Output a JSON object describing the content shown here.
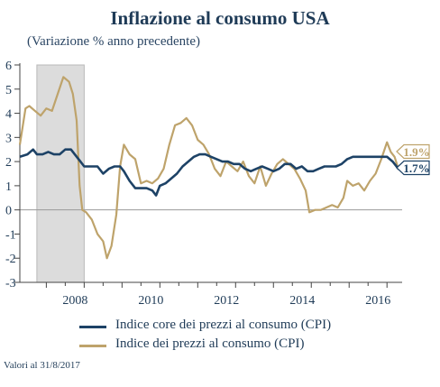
{
  "title": "Inflazione al consumo USA",
  "subtitle": "(Variazione % anno precedente)",
  "footnote": "Valori al 31/8/2017",
  "colors": {
    "core": "#1d4266",
    "cpi": "#bea36b",
    "recession": "#dcdcdc",
    "grid": "#9a9a9a"
  },
  "chart_data": {
    "type": "line",
    "ylim": [
      -3,
      6
    ],
    "yticks": [
      -3,
      -2,
      -1,
      0,
      1,
      2,
      3,
      4,
      5,
      6
    ],
    "xlim": [
      2007.3,
      2017.4
    ],
    "xticks": [
      {
        "value": 2008,
        "label": "2008"
      },
      {
        "value": 2010,
        "label": "2010"
      },
      {
        "value": 2012,
        "label": "2012"
      },
      {
        "value": 2014,
        "label": "2014"
      },
      {
        "value": 2016,
        "label": "2016"
      }
    ],
    "shaded_region": {
      "x": [
        2007.75,
        2009.0
      ]
    },
    "series": [
      {
        "name": "Indice core dei prezzi al consumo (CPI)",
        "key": "core",
        "end_label": "1.7%",
        "values": [
          [
            2007.3,
            2.2
          ],
          [
            2007.5,
            2.3
          ],
          [
            2007.65,
            2.5
          ],
          [
            2007.75,
            2.3
          ],
          [
            2007.9,
            2.3
          ],
          [
            2008.05,
            2.4
          ],
          [
            2008.2,
            2.3
          ],
          [
            2008.35,
            2.3
          ],
          [
            2008.5,
            2.5
          ],
          [
            2008.65,
            2.5
          ],
          [
            2008.75,
            2.3
          ],
          [
            2008.9,
            2.0
          ],
          [
            2009.0,
            1.8
          ],
          [
            2009.2,
            1.8
          ],
          [
            2009.35,
            1.8
          ],
          [
            2009.5,
            1.5
          ],
          [
            2009.65,
            1.7
          ],
          [
            2009.8,
            1.8
          ],
          [
            2009.95,
            1.8
          ],
          [
            2010.05,
            1.6
          ],
          [
            2010.2,
            1.2
          ],
          [
            2010.35,
            0.9
          ],
          [
            2010.5,
            0.9
          ],
          [
            2010.65,
            0.9
          ],
          [
            2010.8,
            0.8
          ],
          [
            2010.9,
            0.6
          ],
          [
            2011.0,
            1.0
          ],
          [
            2011.15,
            1.1
          ],
          [
            2011.3,
            1.3
          ],
          [
            2011.45,
            1.5
          ],
          [
            2011.6,
            1.8
          ],
          [
            2011.75,
            2.0
          ],
          [
            2011.9,
            2.2
          ],
          [
            2012.05,
            2.3
          ],
          [
            2012.2,
            2.3
          ],
          [
            2012.35,
            2.2
          ],
          [
            2012.5,
            2.1
          ],
          [
            2012.65,
            2.0
          ],
          [
            2012.8,
            2.0
          ],
          [
            2012.95,
            1.9
          ],
          [
            2013.1,
            1.9
          ],
          [
            2013.25,
            1.7
          ],
          [
            2013.4,
            1.6
          ],
          [
            2013.55,
            1.7
          ],
          [
            2013.7,
            1.8
          ],
          [
            2013.85,
            1.7
          ],
          [
            2014.0,
            1.6
          ],
          [
            2014.15,
            1.7
          ],
          [
            2014.3,
            1.9
          ],
          [
            2014.45,
            1.9
          ],
          [
            2014.6,
            1.7
          ],
          [
            2014.75,
            1.8
          ],
          [
            2014.9,
            1.6
          ],
          [
            2015.05,
            1.6
          ],
          [
            2015.2,
            1.7
          ],
          [
            2015.35,
            1.8
          ],
          [
            2015.5,
            1.8
          ],
          [
            2015.65,
            1.8
          ],
          [
            2015.8,
            1.9
          ],
          [
            2015.95,
            2.1
          ],
          [
            2016.1,
            2.2
          ],
          [
            2016.25,
            2.2
          ],
          [
            2016.4,
            2.2
          ],
          [
            2016.55,
            2.2
          ],
          [
            2016.7,
            2.2
          ],
          [
            2016.85,
            2.2
          ],
          [
            2017.0,
            2.2
          ],
          [
            2017.15,
            2.0
          ],
          [
            2017.3,
            1.7
          ],
          [
            2017.4,
            1.7
          ]
        ]
      },
      {
        "name": "Indice dei prezzi al consumo (CPI)",
        "key": "cpi",
        "end_label": "1.9%",
        "values": [
          [
            2007.3,
            2.7
          ],
          [
            2007.45,
            4.2
          ],
          [
            2007.55,
            4.3
          ],
          [
            2007.7,
            4.1
          ],
          [
            2007.85,
            3.9
          ],
          [
            2008.0,
            4.2
          ],
          [
            2008.15,
            4.1
          ],
          [
            2008.3,
            4.8
          ],
          [
            2008.45,
            5.5
          ],
          [
            2008.6,
            5.3
          ],
          [
            2008.7,
            4.8
          ],
          [
            2008.8,
            3.7
          ],
          [
            2008.88,
            1.0
          ],
          [
            2008.95,
            0.0
          ],
          [
            2009.05,
            -0.1
          ],
          [
            2009.2,
            -0.4
          ],
          [
            2009.35,
            -1.0
          ],
          [
            2009.5,
            -1.3
          ],
          [
            2009.6,
            -2.0
          ],
          [
            2009.72,
            -1.5
          ],
          [
            2009.85,
            -0.2
          ],
          [
            2009.95,
            1.8
          ],
          [
            2010.05,
            2.7
          ],
          [
            2010.2,
            2.3
          ],
          [
            2010.35,
            2.1
          ],
          [
            2010.5,
            1.1
          ],
          [
            2010.65,
            1.2
          ],
          [
            2010.8,
            1.1
          ],
          [
            2010.95,
            1.3
          ],
          [
            2011.1,
            1.7
          ],
          [
            2011.25,
            2.7
          ],
          [
            2011.4,
            3.5
          ],
          [
            2011.55,
            3.6
          ],
          [
            2011.7,
            3.8
          ],
          [
            2011.85,
            3.5
          ],
          [
            2012.0,
            2.9
          ],
          [
            2012.15,
            2.7
          ],
          [
            2012.3,
            2.3
          ],
          [
            2012.45,
            1.7
          ],
          [
            2012.6,
            1.4
          ],
          [
            2012.75,
            2.0
          ],
          [
            2012.9,
            1.8
          ],
          [
            2013.05,
            1.6
          ],
          [
            2013.2,
            2.0
          ],
          [
            2013.35,
            1.4
          ],
          [
            2013.5,
            1.1
          ],
          [
            2013.65,
            1.8
          ],
          [
            2013.8,
            1.0
          ],
          [
            2013.95,
            1.5
          ],
          [
            2014.1,
            1.9
          ],
          [
            2014.25,
            2.1
          ],
          [
            2014.4,
            1.9
          ],
          [
            2014.55,
            1.7
          ],
          [
            2014.7,
            1.3
          ],
          [
            2014.85,
            0.8
          ],
          [
            2014.95,
            -0.1
          ],
          [
            2015.1,
            0.0
          ],
          [
            2015.25,
            0.0
          ],
          [
            2015.4,
            0.1
          ],
          [
            2015.55,
            0.2
          ],
          [
            2015.7,
            0.1
          ],
          [
            2015.85,
            0.5
          ],
          [
            2015.95,
            1.2
          ],
          [
            2016.1,
            1.0
          ],
          [
            2016.25,
            1.1
          ],
          [
            2016.4,
            0.8
          ],
          [
            2016.55,
            1.2
          ],
          [
            2016.7,
            1.5
          ],
          [
            2016.85,
            2.1
          ],
          [
            2017.0,
            2.8
          ],
          [
            2017.1,
            2.4
          ],
          [
            2017.2,
            2.2
          ],
          [
            2017.3,
            1.7
          ],
          [
            2017.4,
            1.9
          ]
        ]
      }
    ]
  }
}
